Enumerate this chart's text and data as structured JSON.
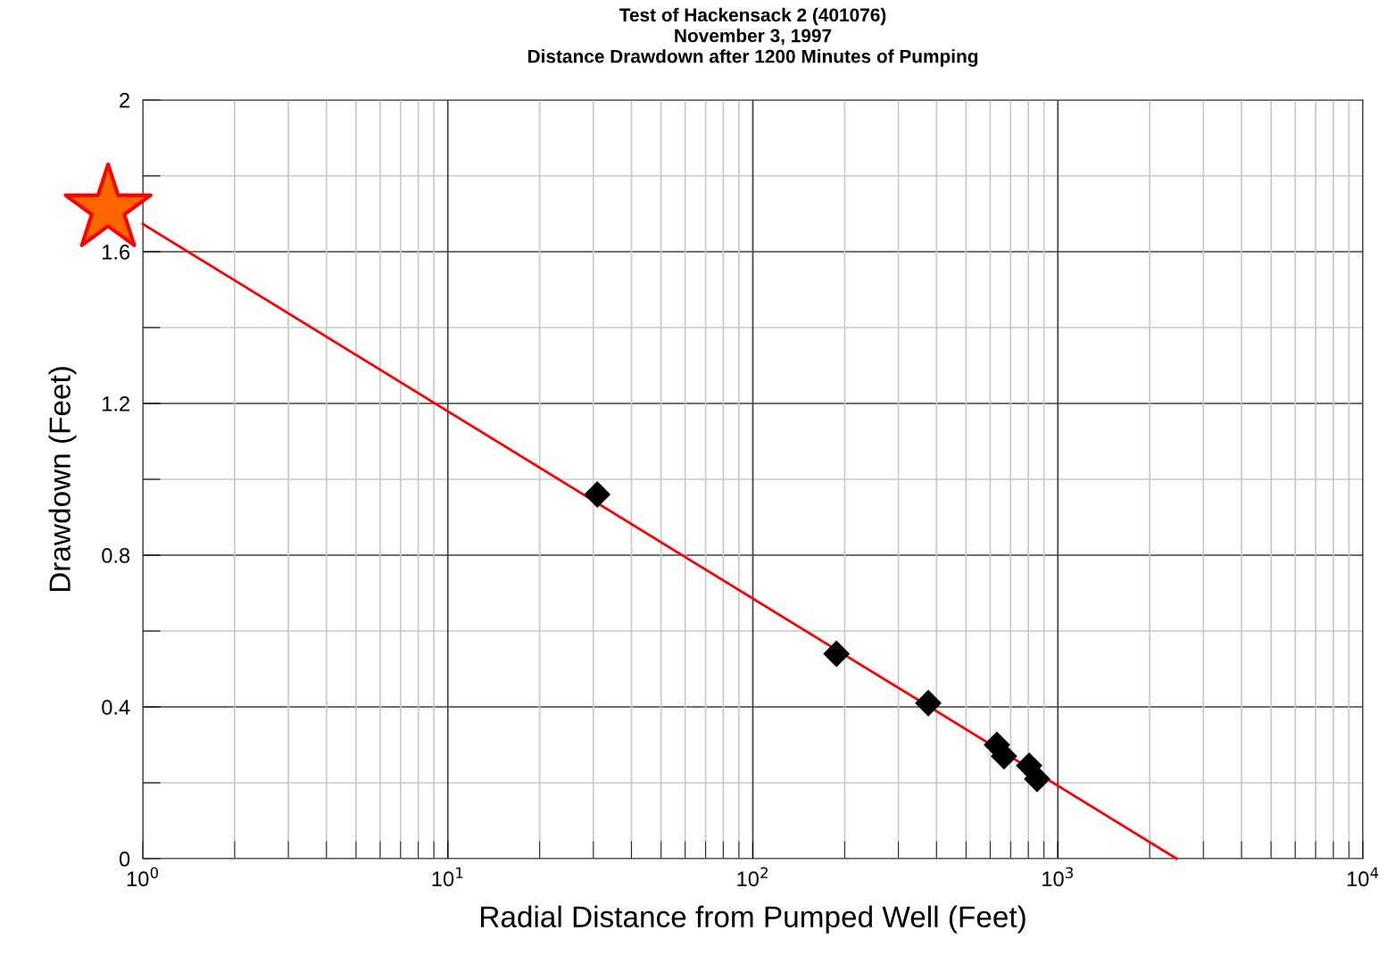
{
  "chart_data": {
    "type": "scatter",
    "title": "Test of Hackensack 2 (401076)\nNovember 3, 1997\nDistance Drawdown after 1200 Minutes of Pumping",
    "xlabel": "Radial Distance from Pumped Well (Feet)",
    "ylabel": "Drawdown (Feet)",
    "log": "x",
    "grid": true,
    "marker": "diamond",
    "xlim": [
      1,
      10000
    ],
    "xticks": [
      {
        "value": 1,
        "label": "10$^{0}$"
      },
      {
        "value": 10,
        "label": "10$^{1}$"
      },
      {
        "value": 100,
        "label": "10$^{2}$"
      },
      {
        "value": 1000,
        "label": "10$^{3}$"
      },
      {
        "value": 10000,
        "label": "10$^{4}$"
      }
    ],
    "ylim": [
      0,
      2
    ],
    "yticks": [
      0,
      {
        "value": 0.2,
        "label": null
      },
      0.4,
      {
        "value": 0.6,
        "label": null
      },
      0.8,
      {
        "value": 1.0,
        "label": null
      },
      1.2,
      {
        "value": 1.4,
        "label": null
      },
      1.6,
      {
        "value": 1.8,
        "label": null
      },
      2
    ],
    "series": [
      {
        "type": "line",
        "color": "#ff0000",
        "marker": "none",
        "x": [
          1,
          2450
        ],
        "values": [
          1.673,
          0
        ]
      },
      {
        "color": "#000000",
        "x": [
          30.9,
          188,
          376,
          631,
          666,
          805,
          855
        ],
        "values": [
          0.96,
          0.54,
          0.41,
          0.3,
          0.27,
          0.245,
          0.21
        ]
      }
    ]
  }
}
